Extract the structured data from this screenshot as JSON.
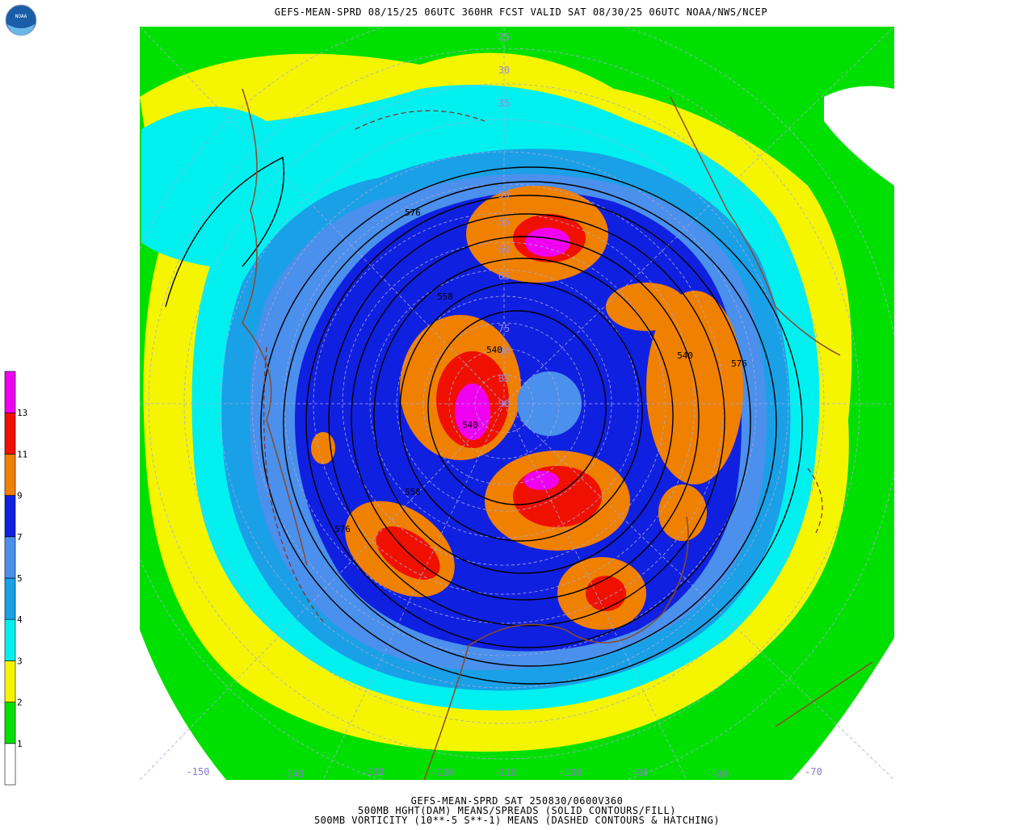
{
  "header": {
    "title": "GEFS-MEAN-SPRD 08/15/25 06UTC 360HR FCST VALID SAT 08/30/25 06UTC NOAA/NWS/NCEP",
    "logo": "NOAA"
  },
  "footer": {
    "lines": [
      "GEFS-MEAN-SPRD SAT 250830/0600V360",
      "500MB HGHT(DAM) MEANS/SPREADS (SOLID CONTOURS/FILL)",
      "500MB VORTICITY (10**-5 S**-1) MEANS (DASHED CONTOURS & HATCHING)"
    ]
  },
  "colorbar": {
    "labels": [
      "1",
      "2",
      "3",
      "4",
      "5",
      "7",
      "9",
      "11",
      "13"
    ],
    "colors": [
      "#ffffff",
      "#00e000",
      "#f5f500",
      "#00f0f0",
      "#1aa0e6",
      "#4a90ec",
      "#1020e0",
      "#f08000",
      "#f01000",
      "#f000f0"
    ]
  },
  "map": {
    "latitude_labels": [
      "25",
      "30",
      "35",
      "50",
      "55",
      "60",
      "65",
      "75",
      "80",
      "85",
      "90"
    ],
    "longitude_labels": [
      "-150",
      "-140",
      "-130",
      "-120",
      "-110",
      "-100",
      "-90",
      "-80",
      "-70"
    ],
    "contour_labels": [
      "576",
      "558",
      "540",
      "540",
      "558",
      "576",
      "576",
      "540"
    ]
  }
}
